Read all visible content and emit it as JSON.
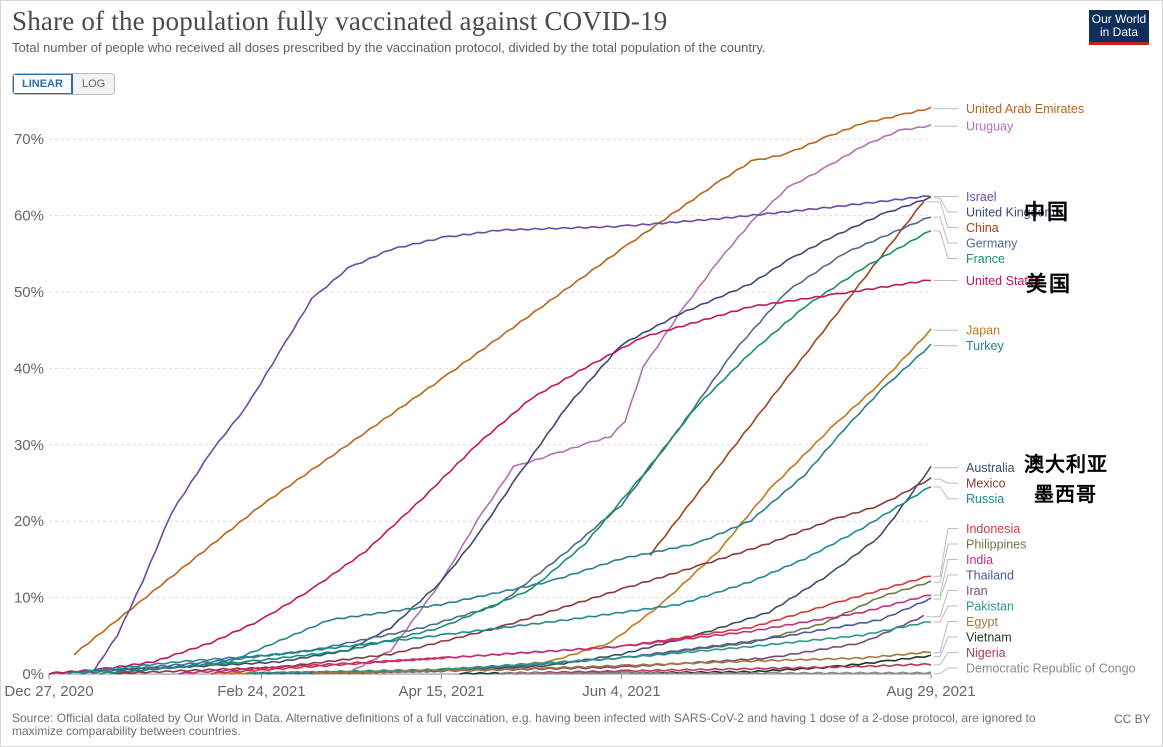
{
  "header": {
    "title": "Share of the population fully vaccinated against COVID-19",
    "subtitle": "Total number of people who received all doses prescribed by the vaccination protocol, divided by the total population of the country."
  },
  "logo": {
    "line1": "Our World",
    "line2": "in Data"
  },
  "scale_toggle": {
    "linear_label": "LINEAR",
    "log_label": "LOG",
    "active": "LINEAR"
  },
  "footer": {
    "source": "Source: Official data collated by Our World in Data. Alternative definitions of a full vaccination, e.g. having been infected with SARS-CoV-2 and having 1 dose of a 2-dose protocol, are ignored to maximize comparability between countries.",
    "license": "CC BY"
  },
  "annotations": {
    "china": "中国",
    "united_states": "美国",
    "australia": "澳大利亚",
    "mexico": "墨西哥"
  },
  "chart_data": {
    "type": "line",
    "x_axis": {
      "start": "2020-12-27",
      "end": "2021-08-29",
      "ticks": [
        "2020-12-27",
        "2021-02-24",
        "2021-04-15",
        "2021-06-04",
        "2021-08-29"
      ],
      "tick_labels": [
        "Dec 27, 2020",
        "Feb 24, 2021",
        "Apr 15, 2021",
        "Jun 4, 2021",
        "Aug 29, 2021"
      ]
    },
    "y_axis": {
      "min": 0,
      "max": 75,
      "ticks": [
        0,
        10,
        20,
        30,
        40,
        50,
        60,
        70
      ],
      "tick_labels": [
        "0%",
        "10%",
        "20%",
        "30%",
        "40%",
        "50%",
        "60%",
        "70%"
      ],
      "unit": "%"
    },
    "grid": "horizontal dashed",
    "legend": "right, end-of-line labels",
    "series": [
      {
        "name": "United Arab Emirates",
        "color": "#b8651b",
        "points": [
          [
            "2021-01-03",
            2.5
          ],
          [
            "2021-02-24",
            22
          ],
          [
            "2021-04-15",
            38.5
          ],
          [
            "2021-06-04",
            55.5
          ],
          [
            "2021-06-30",
            64
          ],
          [
            "2021-07-10",
            67
          ],
          [
            "2021-07-20",
            68
          ],
          [
            "2021-07-30",
            70
          ],
          [
            "2021-08-10",
            72
          ],
          [
            "2021-08-20",
            73
          ],
          [
            "2021-08-29",
            74
          ]
        ]
      },
      {
        "name": "Uruguay",
        "color": "#b46fb6",
        "points": [
          [
            "2021-03-20",
            0
          ],
          [
            "2021-04-01",
            3
          ],
          [
            "2021-04-15",
            12
          ],
          [
            "2021-04-25",
            20
          ],
          [
            "2021-05-05",
            27
          ],
          [
            "2021-05-15",
            28.5
          ],
          [
            "2021-05-25",
            30
          ],
          [
            "2021-06-01",
            31
          ],
          [
            "2021-06-05",
            33
          ],
          [
            "2021-06-10",
            40
          ],
          [
            "2021-06-20",
            47
          ],
          [
            "2021-07-01",
            54
          ],
          [
            "2021-07-10",
            59
          ],
          [
            "2021-07-20",
            63.5
          ],
          [
            "2021-07-30",
            66
          ],
          [
            "2021-08-10",
            69
          ],
          [
            "2021-08-20",
            71
          ],
          [
            "2021-08-29",
            71.7
          ]
        ]
      },
      {
        "name": "United Kingdom",
        "color": "#3c4a74",
        "points": [
          [
            "2020-12-27",
            0
          ],
          [
            "2021-01-15",
            0.5
          ],
          [
            "2021-02-10",
            1
          ],
          [
            "2021-03-01",
            1.5
          ],
          [
            "2021-03-20",
            3
          ],
          [
            "2021-04-01",
            6
          ],
          [
            "2021-04-15",
            12
          ],
          [
            "2021-04-25",
            18
          ],
          [
            "2021-05-05",
            25
          ],
          [
            "2021-05-20",
            35
          ],
          [
            "2021-06-04",
            43
          ],
          [
            "2021-06-20",
            47
          ],
          [
            "2021-07-10",
            51
          ],
          [
            "2021-07-20",
            54
          ],
          [
            "2021-08-01",
            57
          ],
          [
            "2021-08-15",
            60
          ],
          [
            "2021-08-29",
            62.3
          ]
        ]
      },
      {
        "name": "Israel",
        "color": "#6d4aa3",
        "points": [
          [
            "2021-01-08",
            0
          ],
          [
            "2021-01-15",
            5
          ],
          [
            "2021-01-22",
            12
          ],
          [
            "2021-01-30",
            21
          ],
          [
            "2021-02-10",
            29
          ],
          [
            "2021-02-20",
            35
          ],
          [
            "2021-03-01",
            42
          ],
          [
            "2021-03-10",
            49
          ],
          [
            "2021-03-20",
            53
          ],
          [
            "2021-04-01",
            55.5
          ],
          [
            "2021-04-15",
            57
          ],
          [
            "2021-05-01",
            58
          ],
          [
            "2021-06-04",
            58.5
          ],
          [
            "2021-07-01",
            59.5
          ],
          [
            "2021-08-01",
            61
          ],
          [
            "2021-08-29",
            62.5
          ]
        ]
      },
      {
        "name": "China",
        "color": "#a0451c",
        "points": [
          [
            "2021-06-12",
            15.5
          ],
          [
            "2021-08-27",
            61.8
          ]
        ]
      },
      {
        "name": "Germany",
        "color": "#4f6a8f",
        "points": [
          [
            "2021-01-05",
            0
          ],
          [
            "2021-02-10",
            1.5
          ],
          [
            "2021-03-10",
            3
          ],
          [
            "2021-04-10",
            6
          ],
          [
            "2021-05-01",
            9
          ],
          [
            "2021-05-20",
            16
          ],
          [
            "2021-06-04",
            22
          ],
          [
            "2021-06-20",
            32
          ],
          [
            "2021-07-05",
            42
          ],
          [
            "2021-07-20",
            50
          ],
          [
            "2021-08-05",
            55
          ],
          [
            "2021-08-29",
            59.8
          ]
        ]
      },
      {
        "name": "France",
        "color": "#1a8f6a",
        "points": [
          [
            "2021-01-10",
            0
          ],
          [
            "2021-02-20",
            1.5
          ],
          [
            "2021-03-20",
            3
          ],
          [
            "2021-04-15",
            6
          ],
          [
            "2021-05-10",
            11
          ],
          [
            "2021-05-25",
            17
          ],
          [
            "2021-06-10",
            26
          ],
          [
            "2021-06-25",
            35
          ],
          [
            "2021-07-10",
            42
          ],
          [
            "2021-07-25",
            48
          ],
          [
            "2021-08-10",
            53
          ],
          [
            "2021-08-29",
            58
          ]
        ]
      },
      {
        "name": "United States",
        "color": "#c2175b",
        "points": [
          [
            "2020-12-27",
            0
          ],
          [
            "2021-01-10",
            0.5
          ],
          [
            "2021-01-25",
            1.5
          ],
          [
            "2021-02-10",
            4
          ],
          [
            "2021-02-24",
            7
          ],
          [
            "2021-03-10",
            11
          ],
          [
            "2021-03-25",
            16
          ],
          [
            "2021-04-10",
            23
          ],
          [
            "2021-04-25",
            30
          ],
          [
            "2021-05-10",
            36
          ],
          [
            "2021-05-25",
            40
          ],
          [
            "2021-06-10",
            44
          ],
          [
            "2021-06-25",
            46
          ],
          [
            "2021-07-10",
            48
          ],
          [
            "2021-08-01",
            49.5
          ],
          [
            "2021-08-29",
            51.5
          ]
        ]
      },
      {
        "name": "Japan",
        "color": "#c2771c",
        "points": [
          [
            "2021-02-15",
            0
          ],
          [
            "2021-04-15",
            0.3
          ],
          [
            "2021-05-15",
            1.5
          ],
          [
            "2021-06-01",
            4
          ],
          [
            "2021-06-15",
            9
          ],
          [
            "2021-07-01",
            16
          ],
          [
            "2021-07-15",
            24
          ],
          [
            "2021-08-01",
            32
          ],
          [
            "2021-08-15",
            38
          ],
          [
            "2021-08-29",
            45
          ]
        ]
      },
      {
        "name": "Turkey",
        "color": "#2a7f8f",
        "points": [
          [
            "2021-01-14",
            0
          ],
          [
            "2021-02-15",
            1.5
          ],
          [
            "2021-03-15",
            7
          ],
          [
            "2021-04-15",
            9
          ],
          [
            "2021-05-15",
            12
          ],
          [
            "2021-06-04",
            15
          ],
          [
            "2021-06-25",
            17
          ],
          [
            "2021-07-10",
            20
          ],
          [
            "2021-07-25",
            26
          ],
          [
            "2021-08-05",
            32
          ],
          [
            "2021-08-15",
            37
          ],
          [
            "2021-08-29",
            43
          ]
        ]
      },
      {
        "name": "Australia",
        "color": "#3a4f6e",
        "points": [
          [
            "2021-02-22",
            0
          ],
          [
            "2021-04-15",
            0.3
          ],
          [
            "2021-05-15",
            1
          ],
          [
            "2021-06-04",
            2.5
          ],
          [
            "2021-06-25",
            5
          ],
          [
            "2021-07-15",
            8
          ],
          [
            "2021-08-01",
            13
          ],
          [
            "2021-08-15",
            18
          ],
          [
            "2021-08-29",
            27
          ]
        ]
      },
      {
        "name": "Mexico",
        "color": "#8a3a3a",
        "points": [
          [
            "2021-01-15",
            0
          ],
          [
            "2021-03-01",
            0.8
          ],
          [
            "2021-04-01",
            2.5
          ],
          [
            "2021-05-01",
            6
          ],
          [
            "2021-06-04",
            11
          ],
          [
            "2021-06-25",
            14
          ],
          [
            "2021-07-15",
            17
          ],
          [
            "2021-08-01",
            20
          ],
          [
            "2021-08-15",
            22
          ],
          [
            "2021-08-29",
            25.5
          ]
        ]
      },
      {
        "name": "Russia",
        "color": "#1f8a93",
        "points": [
          [
            "2021-01-01",
            0
          ],
          [
            "2021-02-01",
            1.5
          ],
          [
            "2021-03-01",
            2.5
          ],
          [
            "2021-04-15",
            5
          ],
          [
            "2021-05-20",
            7
          ],
          [
            "2021-06-20",
            9
          ],
          [
            "2021-07-10",
            12
          ],
          [
            "2021-07-25",
            15
          ],
          [
            "2021-08-10",
            19
          ],
          [
            "2021-08-29",
            24.5
          ]
        ]
      },
      {
        "name": "Indonesia",
        "color": "#d23b3b",
        "points": [
          [
            "2021-02-10",
            0
          ],
          [
            "2021-04-15",
            2
          ],
          [
            "2021-06-04",
            3.5
          ],
          [
            "2021-07-10",
            6
          ],
          [
            "2021-08-01",
            9
          ],
          [
            "2021-08-29",
            12.8
          ]
        ]
      },
      {
        "name": "Philippines",
        "color": "#6e7a4a",
        "points": [
          [
            "2021-03-20",
            0
          ],
          [
            "2021-05-01",
            0.8
          ],
          [
            "2021-06-04",
            2
          ],
          [
            "2021-07-10",
            4
          ],
          [
            "2021-07-30",
            6.5
          ],
          [
            "2021-08-15",
            10
          ],
          [
            "2021-08-29",
            12
          ]
        ]
      },
      {
        "name": "India",
        "color": "#c2307c",
        "points": [
          [
            "2021-02-01",
            0
          ],
          [
            "2021-03-01",
            0.8
          ],
          [
            "2021-04-15",
            2
          ],
          [
            "2021-06-04",
            3.5
          ],
          [
            "2021-07-10",
            5.5
          ],
          [
            "2021-08-10",
            8
          ],
          [
            "2021-08-29",
            10.3
          ]
        ]
      },
      {
        "name": "Thailand",
        "color": "#4a5a9a",
        "points": [
          [
            "2021-03-10",
            0
          ],
          [
            "2021-04-15",
            0.3
          ],
          [
            "2021-06-04",
            2
          ],
          [
            "2021-07-15",
            4.5
          ],
          [
            "2021-08-15",
            7
          ],
          [
            "2021-08-29",
            9.8
          ]
        ]
      },
      {
        "name": "Iran",
        "color": "#7a4a7a",
        "points": [
          [
            "2021-02-20",
            0
          ],
          [
            "2021-04-15",
            0.3
          ],
          [
            "2021-06-04",
            0.8
          ],
          [
            "2021-07-15",
            2
          ],
          [
            "2021-08-10",
            4
          ],
          [
            "2021-08-27",
            7.5
          ]
        ]
      },
      {
        "name": "Pakistan",
        "color": "#2a9a8a",
        "points": [
          [
            "2021-02-20",
            0
          ],
          [
            "2021-04-15",
            0.5
          ],
          [
            "2021-06-04",
            2
          ],
          [
            "2021-07-10",
            3.5
          ],
          [
            "2021-08-10",
            5
          ],
          [
            "2021-08-29",
            6.8
          ]
        ]
      },
      {
        "name": "Egypt",
        "color": "#a07a3a",
        "points": [
          [
            "2021-03-10",
            0
          ],
          [
            "2021-05-01",
            0.5
          ],
          [
            "2021-06-04",
            1
          ],
          [
            "2021-07-10",
            1.6
          ],
          [
            "2021-08-10",
            2
          ],
          [
            "2021-08-29",
            2.8
          ]
        ]
      },
      {
        "name": "Vietnam",
        "color": "#1f3a1f",
        "points": [
          [
            "2021-04-20",
            0
          ],
          [
            "2021-06-04",
            0.05
          ],
          [
            "2021-07-10",
            0.2
          ],
          [
            "2021-08-01",
            0.8
          ],
          [
            "2021-08-15",
            1.5
          ],
          [
            "2021-08-29",
            2.3
          ]
        ]
      },
      {
        "name": "Nigeria",
        "color": "#b8385a",
        "points": [
          [
            "2021-05-01",
            0
          ],
          [
            "2021-06-04",
            0.3
          ],
          [
            "2021-07-10",
            0.6
          ],
          [
            "2021-08-10",
            0.9
          ],
          [
            "2021-08-29",
            1.2
          ]
        ]
      },
      {
        "name": "Democratic Republic of Congo",
        "color": "#8a8a8a",
        "points": [
          [
            "2021-05-01",
            0
          ],
          [
            "2021-06-04",
            0.01
          ],
          [
            "2021-07-15",
            0.02
          ],
          [
            "2021-08-29",
            0.05
          ]
        ]
      }
    ]
  }
}
